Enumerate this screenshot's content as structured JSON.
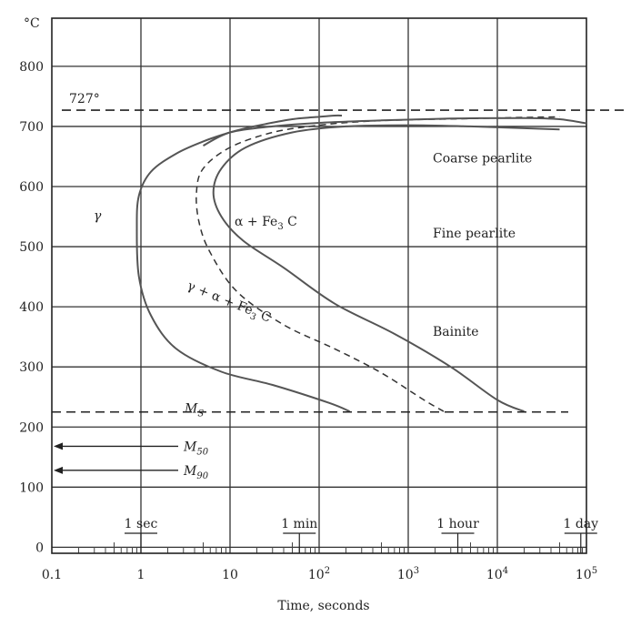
{
  "chart_data": {
    "type": "line",
    "title": "",
    "xlabel": "Time, seconds",
    "ylabel": "°C",
    "x_scale": "log",
    "xlim": [
      0.1,
      100000
    ],
    "ylim": [
      -10,
      880
    ],
    "x_ticks": [
      {
        "value": 0.1,
        "base": "0.1",
        "exp": ""
      },
      {
        "value": 1,
        "base": "1",
        "exp": ""
      },
      {
        "value": 10,
        "base": "10",
        "exp": ""
      },
      {
        "value": 100,
        "base": "10",
        "exp": "2"
      },
      {
        "value": 1000,
        "base": "10",
        "exp": "3"
      },
      {
        "value": 10000,
        "base": "10",
        "exp": "4"
      },
      {
        "value": 100000,
        "base": "10",
        "exp": "5"
      }
    ],
    "y_ticks": [
      "0",
      "100",
      "200",
      "300",
      "400",
      "500",
      "600",
      "700",
      "800"
    ],
    "y_tick_values": [
      0,
      100,
      200,
      300,
      400,
      500,
      600,
      700,
      800
    ],
    "grid": true,
    "time_markers": [
      {
        "label": "1 sec",
        "value": 1
      },
      {
        "label": "1 min",
        "value": 60
      },
      {
        "label": "1 hour",
        "value": 3600
      },
      {
        "label": "1 day",
        "value": 86400
      }
    ],
    "reference_lines": [
      {
        "label": "727°",
        "y": 727,
        "style": "dashed"
      },
      {
        "label": "M",
        "label_sub": "S",
        "y": 225,
        "style": "dashed"
      }
    ],
    "arrow_levels": [
      {
        "label": "M",
        "label_sub": "50",
        "y": 168
      },
      {
        "label": "M",
        "label_sub": "90",
        "y": 128
      }
    ],
    "region_labels": [
      {
        "id": "gamma",
        "text": "γ"
      },
      {
        "id": "alpha_fe3c",
        "text": "α + Fe",
        "sub": "3",
        "suffix": " C"
      },
      {
        "id": "gamma_alpha_fe3c",
        "text": "γ + α + Fe",
        "sub": "3",
        "suffix": " C"
      },
      {
        "id": "coarse",
        "text": "Coarse pearlite"
      },
      {
        "id": "fine",
        "text": "Fine pearlite"
      },
      {
        "id": "bainite",
        "text": "Bainite"
      }
    ],
    "series": [
      {
        "style": "solid",
        "x": [
          220,
          130,
          30,
          8,
          2.5,
          1.3,
          0.95,
          0.9,
          0.95,
          1.3,
          2.5,
          5,
          9,
          15,
          25,
          50,
          100,
          150,
          180
        ],
        "y": [
          226,
          240,
          270,
          292,
          330,
          385,
          450,
          530,
          585,
          625,
          655,
          675,
          688,
          697,
          704,
          712,
          716,
          718,
          718
        ]
      },
      {
        "style": "dashed",
        "x": [
          2500,
          1500,
          500,
          150,
          40,
          12,
          6,
          4.5,
          4.2,
          5,
          10,
          30,
          100,
          300,
          1000,
          5000,
          20000,
          50000
        ],
        "y": [
          226,
          245,
          290,
          330,
          370,
          425,
          490,
          540,
          590,
          630,
          665,
          690,
          702,
          708,
          711,
          713,
          715,
          716
        ]
      },
      {
        "style": "solid",
        "x": [
          20000,
          10000,
          3000,
          700,
          150,
          40,
          14,
          8,
          6.5,
          8,
          15,
          50,
          200,
          1000,
          5000,
          20000,
          50000
        ],
        "y": [
          226,
          245,
          300,
          355,
          405,
          465,
          510,
          550,
          590,
          630,
          665,
          690,
          700,
          702,
          700,
          697,
          695
        ]
      },
      {
        "style": "solid",
        "x": [
          5,
          10,
          30,
          100,
          500,
          3000,
          20000,
          50000,
          100000
        ],
        "y": [
          668,
          690,
          700,
          706,
          710,
          713,
          714,
          712,
          705
        ]
      }
    ]
  }
}
